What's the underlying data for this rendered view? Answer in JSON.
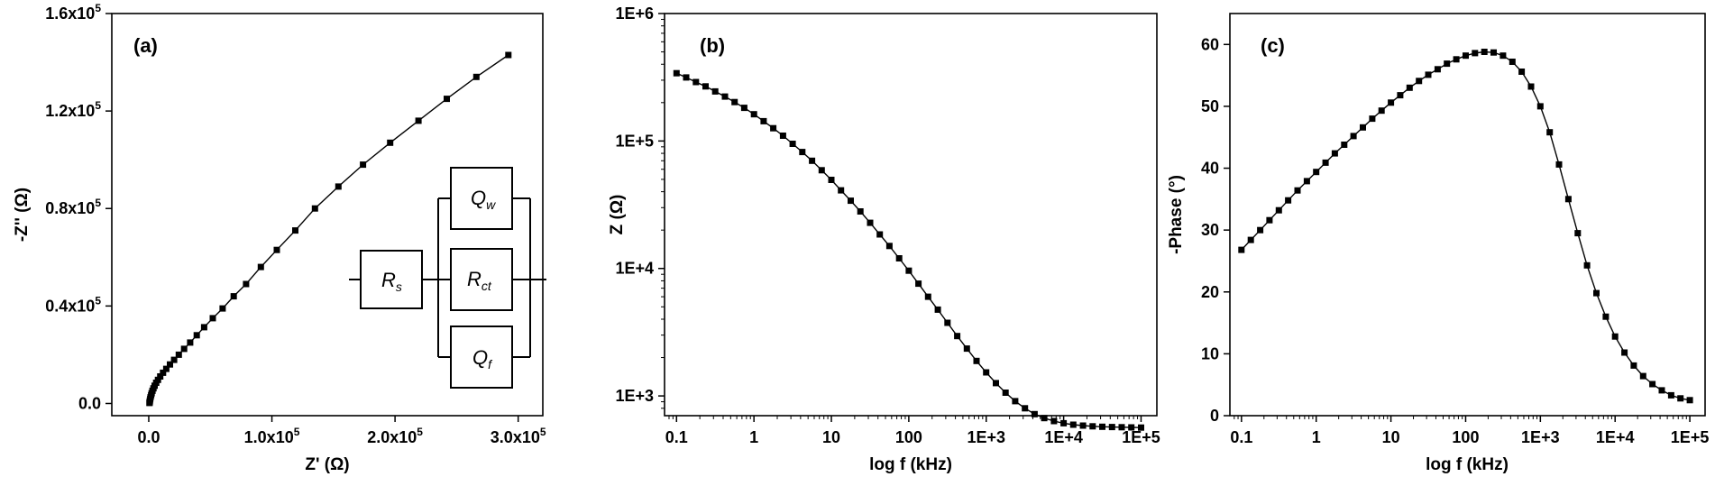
{
  "chart_data": [
    {
      "type": "scatter",
      "panel_label": "(a)",
      "xlabel": "Z' (Ω)",
      "ylabel": "-Z'' (Ω)",
      "xlim": [
        -0.3,
        3.2
      ],
      "ylim": [
        -0.05,
        1.6
      ],
      "x_scale": 100000,
      "y_scale": 100000,
      "x_ticks": [
        0.0,
        1.0,
        2.0,
        3.0
      ],
      "x_tick_labels": [
        {
          "base": "0.0",
          "exp": ""
        },
        {
          "base": "1.0x10",
          "exp": "5"
        },
        {
          "base": "2.0x10",
          "exp": "5"
        },
        {
          "base": "3.0x10",
          "exp": "5"
        }
      ],
      "y_ticks": [
        0.0,
        0.4,
        0.8,
        1.2,
        1.6
      ],
      "y_tick_labels": [
        {
          "base": "0.0",
          "exp": ""
        },
        {
          "base": "0.4x10",
          "exp": "5"
        },
        {
          "base": "0.8x10",
          "exp": "5"
        },
        {
          "base": "1.2x10",
          "exp": "5"
        },
        {
          "base": "1.6x10",
          "exp": "5"
        }
      ],
      "grid": false,
      "connected": true,
      "marker": "square",
      "series": [
        {
          "x": [
            0.006,
            0.007,
            0.008,
            0.01,
            0.012,
            0.015,
            0.019,
            0.024,
            0.03,
            0.038,
            0.048,
            0.06,
            0.075,
            0.093,
            0.116,
            0.142,
            0.172,
            0.206,
            0.244,
            0.287,
            0.336,
            0.39,
            0.45,
            0.52,
            0.6,
            0.69,
            0.79,
            0.91,
            1.04,
            1.19,
            1.35,
            1.54,
            1.74,
            1.96,
            2.19,
            2.42,
            2.66,
            2.92
          ],
          "y": [
            0.002,
            0.004,
            0.008,
            0.013,
            0.019,
            0.026,
            0.034,
            0.042,
            0.052,
            0.062,
            0.073,
            0.085,
            0.097,
            0.111,
            0.126,
            0.142,
            0.16,
            0.179,
            0.2,
            0.224,
            0.25,
            0.28,
            0.313,
            0.35,
            0.39,
            0.44,
            0.49,
            0.56,
            0.63,
            0.71,
            0.8,
            0.89,
            0.98,
            1.07,
            1.16,
            1.25,
            1.34,
            1.43
          ]
        }
      ],
      "inset_circuit": {
        "rs": {
          "main": "R",
          "sub": "s"
        },
        "qw": {
          "main": "Q",
          "sub": "w"
        },
        "rct": {
          "main": "R",
          "sub": "ct"
        },
        "qf": {
          "main": "Q",
          "sub": "f"
        }
      }
    },
    {
      "type": "scatter",
      "panel_label": "(b)",
      "xlabel": "log f (kHz)",
      "ylabel": "Z (Ω)",
      "x_log": true,
      "y_log": true,
      "xlim": [
        0.07,
        160000
      ],
      "ylim": [
        700,
        1000000
      ],
      "x_ticks": [
        0.1,
        1,
        10,
        100,
        1000,
        10000,
        100000
      ],
      "x_tick_labels": [
        "0.1",
        "1",
        "10",
        "100",
        "1E+3",
        "1E+4",
        "1E+5"
      ],
      "y_ticks": [
        1000,
        10000,
        100000,
        1000000
      ],
      "y_tick_labels": [
        "1E+3",
        "1E+4",
        "1E+5",
        "1E+6"
      ],
      "grid": false,
      "connected": true,
      "marker": "square",
      "series": [
        {
          "x": [
            0.1,
            0.1333,
            0.1778,
            0.2371,
            0.3162,
            0.4217,
            0.5623,
            0.7499,
            1,
            1.333,
            1.778,
            2.371,
            3.162,
            4.217,
            5.623,
            7.499,
            10,
            13.33,
            17.78,
            23.71,
            31.62,
            42.17,
            56.23,
            74.99,
            100,
            133.3,
            177.8,
            237.1,
            316.2,
            421.7,
            562.3,
            749.9,
            1000,
            1333,
            1778,
            2371,
            3162,
            4217,
            5623,
            7499,
            10000,
            13335,
            17783,
            23714,
            31623,
            42170,
            56234,
            74989,
            100000
          ],
          "y": [
            340000,
            315000,
            290000,
            268000,
            245000,
            223000,
            202000,
            182000,
            162000,
            143000,
            126000,
            110000,
            95000,
            82000,
            70000,
            59000,
            49500,
            41000,
            34000,
            28000,
            22800,
            18500,
            15000,
            12000,
            9600,
            7600,
            6000,
            4750,
            3750,
            2950,
            2350,
            1880,
            1530,
            1260,
            1060,
            910,
            800,
            720,
            670,
            635,
            610,
            595,
            585,
            578,
            573,
            570,
            568,
            566,
            565
          ]
        }
      ]
    },
    {
      "type": "scatter",
      "panel_label": "(c)",
      "xlabel": "log f (kHz)",
      "ylabel": "-Phase (°)",
      "x_log": true,
      "xlim": [
        0.07,
        160000
      ],
      "ylim": [
        0,
        65
      ],
      "x_ticks": [
        0.1,
        1,
        10,
        100,
        1000,
        10000,
        100000
      ],
      "x_tick_labels": [
        "0.1",
        "1",
        "10",
        "100",
        "1E+3",
        "1E+4",
        "1E+5"
      ],
      "y_ticks": [
        0,
        10,
        20,
        30,
        40,
        50,
        60
      ],
      "y_tick_labels": [
        "0",
        "10",
        "20",
        "30",
        "40",
        "50",
        "60"
      ],
      "grid": false,
      "connected": true,
      "marker": "square",
      "series": [
        {
          "x": [
            0.1,
            0.1333,
            0.1778,
            0.2371,
            0.3162,
            0.4217,
            0.5623,
            0.7499,
            1,
            1.333,
            1.778,
            2.371,
            3.162,
            4.217,
            5.623,
            7.499,
            10,
            13.33,
            17.78,
            23.71,
            31.62,
            42.17,
            56.23,
            74.99,
            100,
            133.3,
            177.8,
            237.1,
            316.2,
            421.7,
            562.3,
            749.9,
            1000,
            1333,
            1778,
            2371,
            3162,
            4217,
            5623,
            7499,
            10000,
            13335,
            17783,
            23714,
            31623,
            42170,
            56234,
            74989,
            100000
          ],
          "y": [
            26.8,
            28.4,
            30,
            31.6,
            33.2,
            34.8,
            36.4,
            37.9,
            39.4,
            40.9,
            42.4,
            43.8,
            45.2,
            46.6,
            48,
            49.3,
            50.6,
            51.8,
            53,
            54.1,
            55.1,
            56,
            56.9,
            57.6,
            58.2,
            58.6,
            58.8,
            58.7,
            58.2,
            57.2,
            55.6,
            53.2,
            50,
            45.8,
            40.6,
            35,
            29.5,
            24.3,
            19.8,
            16,
            12.8,
            10.2,
            8.1,
            6.4,
            5.1,
            4.1,
            3.3,
            2.8,
            2.5
          ]
        }
      ]
    }
  ]
}
